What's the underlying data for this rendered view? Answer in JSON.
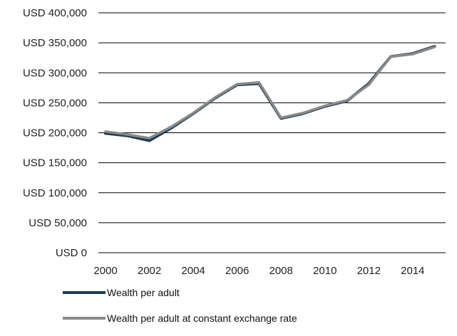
{
  "chart_data": {
    "type": "line",
    "title": "",
    "xlabel": "",
    "ylabel": "",
    "x": [
      2000,
      2001,
      2002,
      2003,
      2004,
      2005,
      2006,
      2007,
      2008,
      2009,
      2010,
      2011,
      2012,
      2013,
      2014,
      2015
    ],
    "x_tick_labels": [
      "2000",
      "2002",
      "2004",
      "2006",
      "2008",
      "2010",
      "2012",
      "2014"
    ],
    "y_tick_values": [
      0,
      50000,
      100000,
      150000,
      200000,
      250000,
      300000,
      350000,
      400000
    ],
    "y_tick_labels": [
      "USD 0",
      "USD 50,000",
      "USD 100,000",
      "USD 150,000",
      "USD 200,000",
      "USD 250,000",
      "USD 300,000",
      "USD 350,000",
      "USD 400,000"
    ],
    "ylim": [
      0,
      400000
    ],
    "grid": true,
    "legend_position": "bottom-left",
    "series": [
      {
        "name": "Wealth per adult",
        "color": "#1f3a4f",
        "values": [
          199000,
          195000,
          187000,
          208000,
          232000,
          258000,
          280000,
          282000,
          224000,
          232000,
          244000,
          253000,
          282000,
          327000,
          332000,
          344000
        ]
      },
      {
        "name": "Wealth per adult at constant exchange rate",
        "color": "#8a8a8a",
        "values": [
          202000,
          197000,
          191000,
          210000,
          233000,
          259000,
          281000,
          284000,
          225000,
          233000,
          245000,
          254000,
          280000,
          327000,
          331000,
          343000
        ]
      }
    ]
  }
}
